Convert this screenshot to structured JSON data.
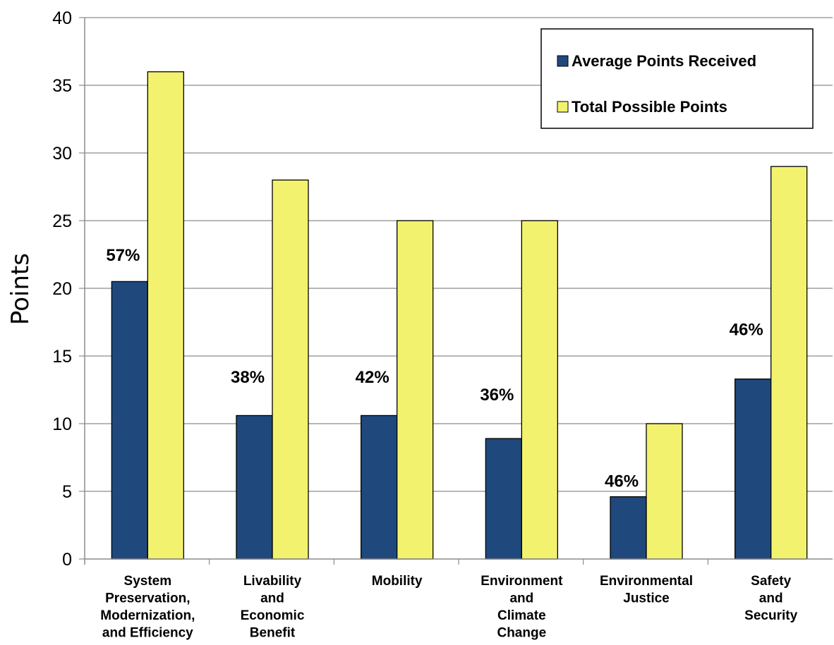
{
  "chart_data": {
    "type": "bar",
    "ylabel": "Points",
    "ylim": [
      0,
      40
    ],
    "yticks": [
      "0",
      "5",
      "10",
      "15",
      "20",
      "25",
      "30",
      "35",
      "40"
    ],
    "grid": "horizontal",
    "legend_position": "top-right",
    "categories": [
      [
        "System",
        "Preservation,",
        "Modernization,",
        "and Efficiency"
      ],
      [
        "Livability",
        "and",
        "Economic",
        "Benefit"
      ],
      [
        "Mobility"
      ],
      [
        "Environment",
        "and",
        "Climate",
        "Change"
      ],
      [
        "Environmental",
        "Justice"
      ],
      [
        "Safety",
        "and",
        "Security"
      ]
    ],
    "series": [
      {
        "name": "Average Points Received",
        "color": "#1F497D",
        "values": [
          20.5,
          10.6,
          10.6,
          8.9,
          4.6,
          13.3
        ]
      },
      {
        "name": "Total Possible Points",
        "color": "#F2F26E",
        "values": [
          36,
          28,
          25,
          25,
          10,
          29
        ]
      }
    ],
    "annotations": [
      "57%",
      "38%",
      "42%",
      "36%",
      "46%",
      "46%"
    ],
    "annotation_values": [
      22.5,
      13.5,
      13.5,
      12.2,
      5.8,
      17.0
    ]
  }
}
